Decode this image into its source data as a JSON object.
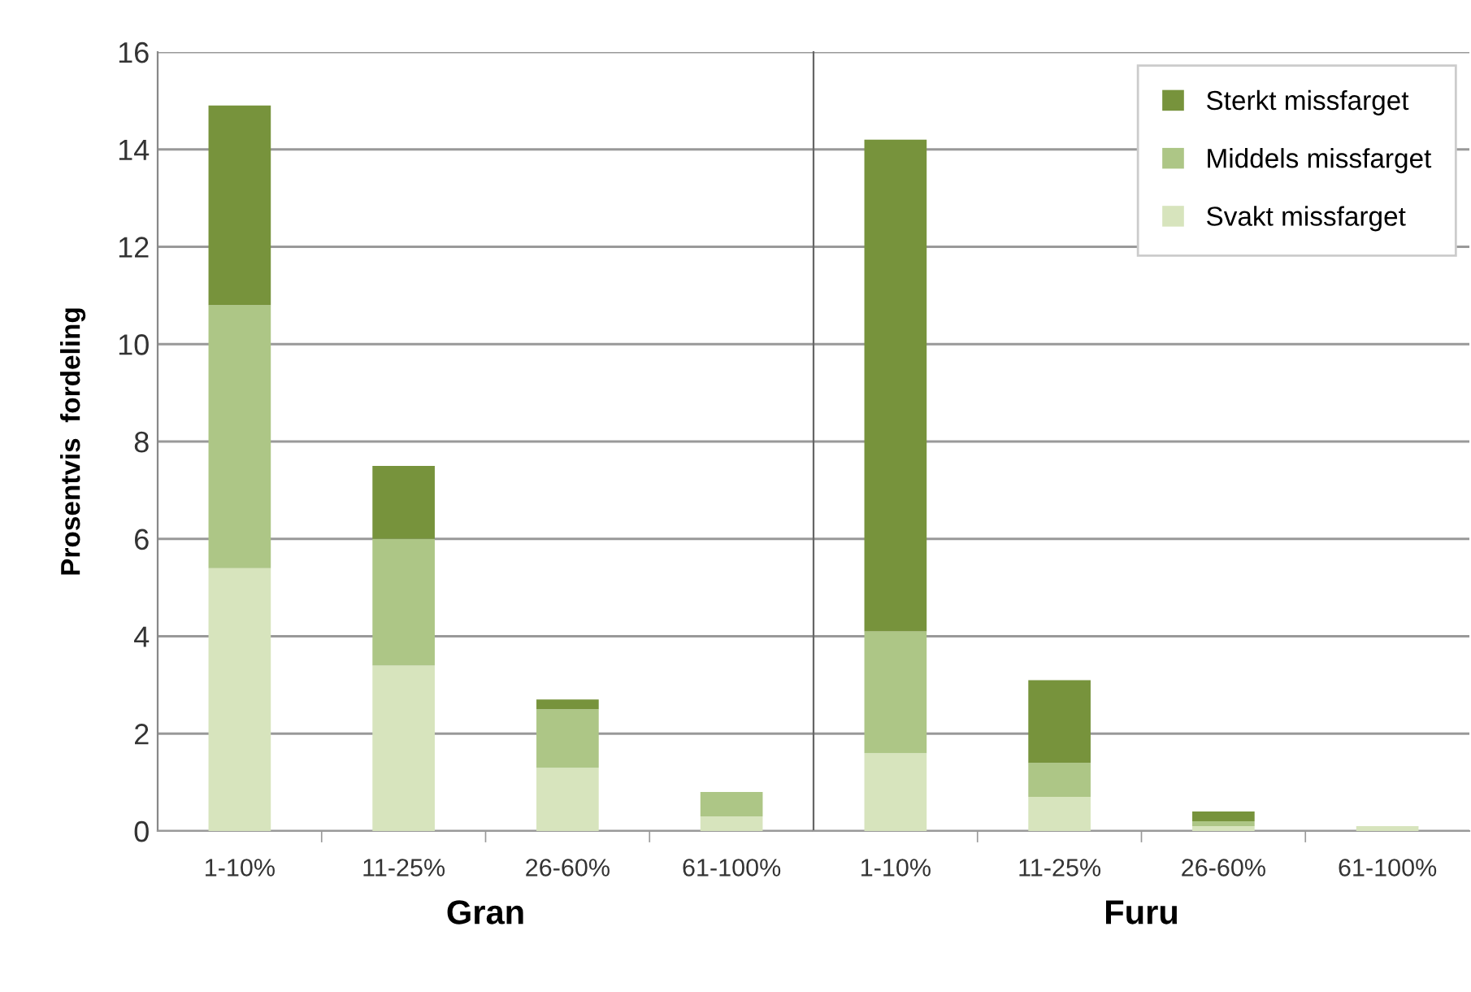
{
  "chart_data": [
    {
      "type": "bar",
      "stacked": true,
      "xlabel": "Gran",
      "ylabel": "Prosentvis  fordeling",
      "categories": [
        "1-10%",
        "11-25%",
        "26-60%",
        "61-100%"
      ],
      "ylim": [
        0,
        16
      ],
      "yticks": [
        0,
        2,
        4,
        6,
        8,
        10,
        12,
        14,
        16
      ],
      "grid": "y",
      "series": [
        {
          "color": "#d7e4bd",
          "values": [
            5.4,
            3.4,
            1.3,
            0.3
          ]
        },
        {
          "color": "#adc686",
          "values": [
            5.4,
            2.6,
            1.2,
            0.5
          ]
        },
        {
          "color": "#77933c",
          "values": [
            4.1,
            1.5,
            0.2,
            0
          ]
        }
      ]
    },
    {
      "type": "bar",
      "stacked": true,
      "xlabel": "Furu",
      "categories": [
        "1-10%",
        "11-25%",
        "26-60%",
        "61-100%"
      ],
      "ylim": [
        0,
        16
      ],
      "yticks": [
        0,
        2,
        4,
        6,
        8,
        10,
        12,
        14,
        16
      ],
      "grid": "y",
      "legend": "top right",
      "tick_labels": "x",
      "series": [
        {
          "name": "Svakt missfarget",
          "color": "#d7e4bd",
          "values": [
            1.6,
            0.7,
            0.1,
            0.1
          ]
        },
        {
          "name": "Middels missfarget",
          "color": "#adc686",
          "values": [
            2.5,
            0.7,
            0.1,
            0
          ]
        },
        {
          "name": "Sterkt missfarget",
          "color": "#77933c",
          "values": [
            10.1,
            1.7,
            0.2,
            0
          ]
        }
      ]
    }
  ]
}
